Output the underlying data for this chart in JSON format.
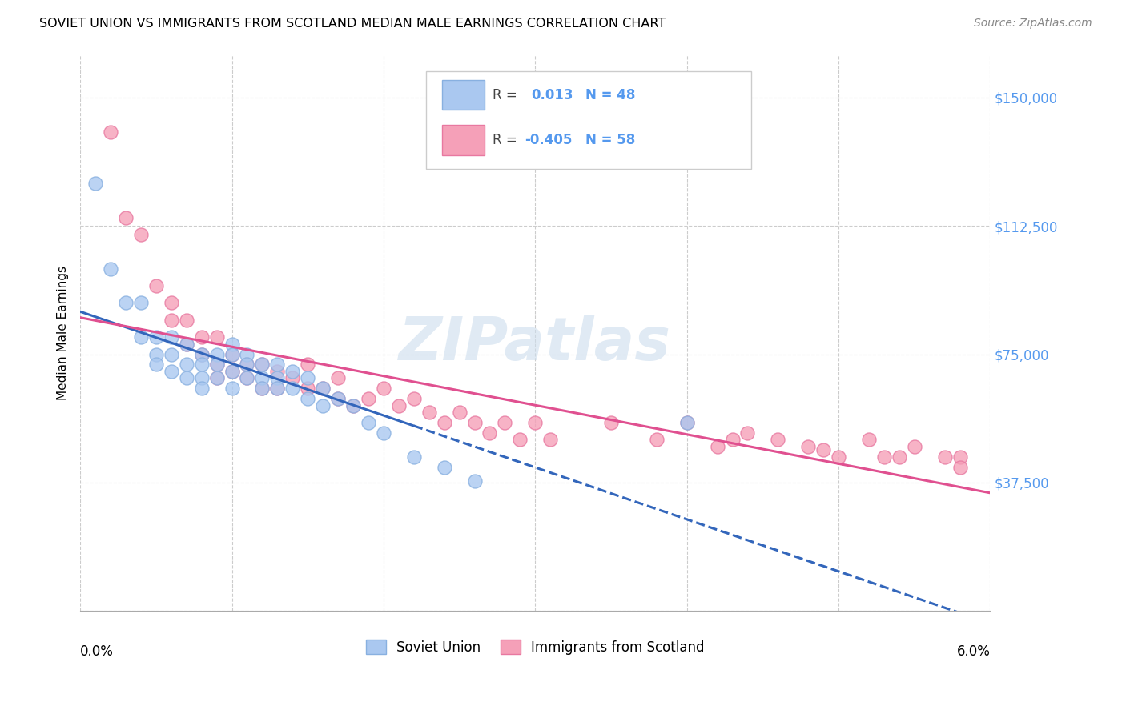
{
  "title": "SOVIET UNION VS IMMIGRANTS FROM SCOTLAND MEDIAN MALE EARNINGS CORRELATION CHART",
  "source": "Source: ZipAtlas.com",
  "ylabel": "Median Male Earnings",
  "yticks": [
    0,
    37500,
    75000,
    112500,
    150000
  ],
  "ytick_labels": [
    "",
    "$37,500",
    "$75,000",
    "$112,500",
    "$150,000"
  ],
  "xlim": [
    0.0,
    0.06
  ],
  "ylim": [
    0,
    162500
  ],
  "soviet_color": "#aac8f0",
  "scotland_color": "#f5a0b8",
  "soviet_edge": "#88b0e0",
  "scotland_edge": "#e878a0",
  "trendline_blue_color": "#3366bb",
  "trendline_pink_color": "#e05090",
  "ytick_color": "#5599ee",
  "watermark": "ZIPatlas",
  "watermark_color": "#ccdded",
  "background": "#ffffff",
  "grid_color": "#cccccc",
  "soviet_x": [
    0.001,
    0.002,
    0.003,
    0.004,
    0.004,
    0.005,
    0.005,
    0.005,
    0.006,
    0.006,
    0.006,
    0.007,
    0.007,
    0.007,
    0.008,
    0.008,
    0.008,
    0.008,
    0.009,
    0.009,
    0.009,
    0.01,
    0.01,
    0.01,
    0.01,
    0.011,
    0.011,
    0.011,
    0.012,
    0.012,
    0.012,
    0.013,
    0.013,
    0.013,
    0.014,
    0.014,
    0.015,
    0.015,
    0.016,
    0.016,
    0.017,
    0.018,
    0.019,
    0.02,
    0.022,
    0.024,
    0.026,
    0.04
  ],
  "soviet_y": [
    125000,
    100000,
    90000,
    90000,
    80000,
    80000,
    75000,
    72000,
    80000,
    75000,
    70000,
    78000,
    72000,
    68000,
    75000,
    72000,
    68000,
    65000,
    75000,
    72000,
    68000,
    78000,
    75000,
    70000,
    65000,
    75000,
    72000,
    68000,
    72000,
    68000,
    65000,
    72000,
    68000,
    65000,
    70000,
    65000,
    68000,
    62000,
    65000,
    60000,
    62000,
    60000,
    55000,
    52000,
    45000,
    42000,
    38000,
    55000
  ],
  "scotland_x": [
    0.002,
    0.003,
    0.004,
    0.005,
    0.006,
    0.006,
    0.007,
    0.007,
    0.008,
    0.008,
    0.009,
    0.009,
    0.009,
    0.01,
    0.01,
    0.011,
    0.011,
    0.012,
    0.012,
    0.013,
    0.013,
    0.014,
    0.015,
    0.015,
    0.016,
    0.017,
    0.017,
    0.018,
    0.019,
    0.02,
    0.021,
    0.022,
    0.023,
    0.024,
    0.025,
    0.026,
    0.027,
    0.028,
    0.029,
    0.03,
    0.031,
    0.035,
    0.038,
    0.04,
    0.042,
    0.044,
    0.046,
    0.048,
    0.05,
    0.052,
    0.054,
    0.055,
    0.057,
    0.058,
    0.043,
    0.049,
    0.053,
    0.058
  ],
  "scotland_y": [
    140000,
    115000,
    110000,
    95000,
    90000,
    85000,
    85000,
    78000,
    80000,
    75000,
    80000,
    72000,
    68000,
    75000,
    70000,
    72000,
    68000,
    72000,
    65000,
    70000,
    65000,
    68000,
    72000,
    65000,
    65000,
    62000,
    68000,
    60000,
    62000,
    65000,
    60000,
    62000,
    58000,
    55000,
    58000,
    55000,
    52000,
    55000,
    50000,
    55000,
    50000,
    55000,
    50000,
    55000,
    48000,
    52000,
    50000,
    48000,
    45000,
    50000,
    45000,
    48000,
    45000,
    45000,
    50000,
    47000,
    45000,
    42000
  ]
}
